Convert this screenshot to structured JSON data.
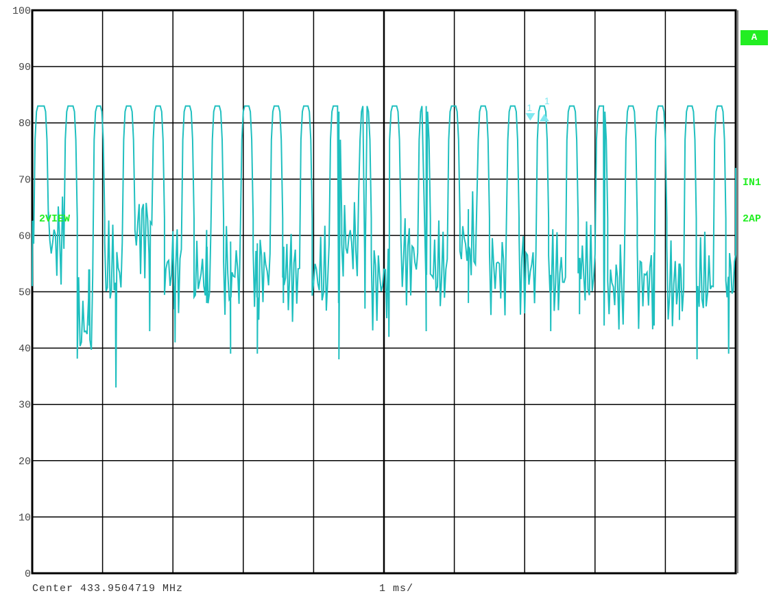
{
  "chart_data": {
    "type": "line",
    "title": "",
    "xlabel": "",
    "ylabel": "",
    "ylim": [
      0,
      100
    ],
    "y_ticks": [
      "100",
      "90",
      "80",
      "70",
      "60",
      "50",
      "40",
      "30",
      "20",
      "10",
      "0"
    ],
    "x_divisions": 10,
    "x_ms_per_div": 1,
    "grid": true,
    "series": [
      {
        "color": "#1fbfbf",
        "pulses": [
          {
            "start_ms": 0.02,
            "end_ms": 0.23,
            "low": 53
          },
          {
            "start_ms": 0.45,
            "end_ms": 0.64,
            "low": 55
          },
          {
            "start_ms": 0.86,
            "end_ms": 1.03,
            "low": 40
          },
          {
            "start_ms": 1.28,
            "end_ms": 1.46,
            "low": 50
          },
          {
            "start_ms": 1.7,
            "end_ms": 1.88,
            "low": 57
          },
          {
            "start_ms": 2.12,
            "end_ms": 2.3,
            "low": 50
          },
          {
            "start_ms": 2.54,
            "end_ms": 2.72,
            "low": 49
          },
          {
            "start_ms": 2.96,
            "end_ms": 3.14,
            "low": 50
          },
          {
            "start_ms": 3.38,
            "end_ms": 3.56,
            "low": 50
          },
          {
            "start_ms": 3.8,
            "end_ms": 3.98,
            "low": 49
          },
          {
            "start_ms": 4.22,
            "end_ms": 4.4,
            "low": 49
          },
          {
            "start_ms": 4.64,
            "end_ms": 4.82,
            "low": 55
          },
          {
            "start_ms": 5.06,
            "end_ms": 5.24,
            "low": 48
          },
          {
            "start_ms": 5.48,
            "end_ms": 5.66,
            "low": 52
          },
          {
            "start_ms": 5.9,
            "end_ms": 6.08,
            "low": 50
          },
          {
            "start_ms": 6.32,
            "end_ms": 6.5,
            "low": 55
          },
          {
            "start_ms": 6.74,
            "end_ms": 6.92,
            "low": 50
          },
          {
            "start_ms": 7.16,
            "end_ms": 7.34,
            "low": 50
          },
          {
            "start_ms": 7.58,
            "end_ms": 7.76,
            "low": 49
          },
          {
            "start_ms": 8.0,
            "end_ms": 8.18,
            "low": 50
          },
          {
            "start_ms": 8.42,
            "end_ms": 8.6,
            "low": 47
          },
          {
            "start_ms": 8.84,
            "end_ms": 9.02,
            "low": 48
          },
          {
            "start_ms": 9.26,
            "end_ms": 9.44,
            "low": 47
          },
          {
            "start_ms": 9.68,
            "end_ms": 9.86,
            "low": 48
          }
        ],
        "high": 83,
        "dips": [
          {
            "x_ms": 0.81,
            "y": 44
          },
          {
            "x_ms": 1.19,
            "y": 33
          },
          {
            "x_ms": 1.67,
            "y": 43
          },
          {
            "x_ms": 2.03,
            "y": 41
          },
          {
            "x_ms": 2.48,
            "y": 48
          },
          {
            "x_ms": 2.82,
            "y": 39
          },
          {
            "x_ms": 3.2,
            "y": 39
          },
          {
            "x_ms": 3.57,
            "y": 48
          },
          {
            "x_ms": 4.36,
            "y": 38
          },
          {
            "x_ms": 4.73,
            "y": 47
          },
          {
            "x_ms": 5.07,
            "y": 42
          },
          {
            "x_ms": 5.6,
            "y": 43
          },
          {
            "x_ms": 6.2,
            "y": 48
          },
          {
            "x_ms": 7.37,
            "y": 43
          },
          {
            "x_ms": 7.78,
            "y": 46
          },
          {
            "x_ms": 8.13,
            "y": 44
          },
          {
            "x_ms": 8.84,
            "y": 44
          },
          {
            "x_ms": 9.2,
            "y": 45
          },
          {
            "x_ms": 9.45,
            "y": 38
          },
          {
            "x_ms": 9.9,
            "y": 39
          }
        ]
      }
    ],
    "markers": [
      {
        "label": "1",
        "x_ms": 7.08,
        "y": 81,
        "direction": "down"
      },
      {
        "label": "1",
        "x_ms": 7.28,
        "y": 81,
        "direction": "up"
      }
    ],
    "annotations": {
      "trace_left": "2VIEW",
      "badge": "A",
      "right_top": "IN1",
      "right_bottom": "2AP"
    }
  },
  "footer": {
    "center": "Center 433.9504719 MHz",
    "span": "1 ms/"
  },
  "colors": {
    "trace": "#1fbfbf",
    "marker": "#7fe8f0",
    "label": "#22ee22",
    "grid": "#000000"
  }
}
